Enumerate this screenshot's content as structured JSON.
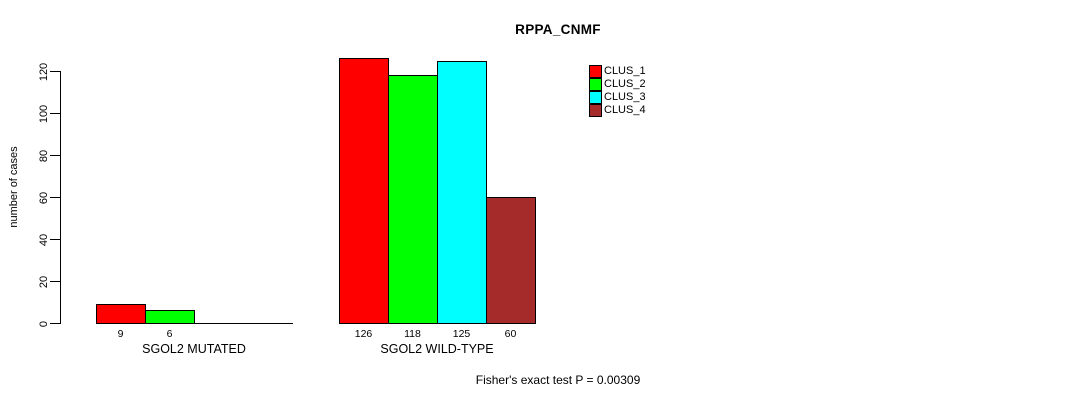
{
  "chart_data": {
    "type": "bar",
    "title": "RPPA_CNMF",
    "ylabel": "number of cases",
    "xlabel": "",
    "ylim": [
      0,
      126
    ],
    "yticks": [
      0,
      20,
      40,
      60,
      80,
      100,
      120
    ],
    "grid": false,
    "legend_position": "top-right",
    "categories": [
      "SGOL2 MUTATED",
      "SGOL2 WILD-TYPE"
    ],
    "series": [
      {
        "name": "CLUS_1",
        "color": "#ff0000",
        "values": [
          9,
          126
        ]
      },
      {
        "name": "CLUS_2",
        "color": "#00ff00",
        "values": [
          6,
          118
        ]
      },
      {
        "name": "CLUS_3",
        "color": "#00ffff",
        "values": [
          0,
          125
        ]
      },
      {
        "name": "CLUS_4",
        "color": "#a52a2a",
        "values": [
          0,
          60
        ]
      }
    ],
    "bar_value_labels": [
      [
        9,
        6
      ],
      [
        126,
        118,
        125,
        60
      ]
    ],
    "footer": "Fisher's exact test P = 0.00309"
  }
}
